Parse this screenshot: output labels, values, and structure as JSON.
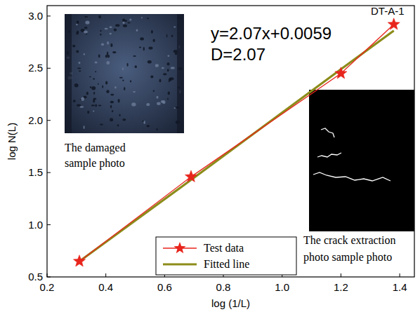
{
  "chart_data": {
    "type": "line",
    "x_label": "log (1/L)",
    "y_label": "log N(L)",
    "annotations": [
      "y=2.07x+0.0059",
      "D=2.07",
      "DT-A-1",
      "The damaged sample photo",
      "The crack extraction photo sample photo"
    ],
    "x": [
      0.31,
      0.69,
      1.2,
      1.38
    ],
    "series": [
      {
        "name": "Test data",
        "color": "#e8251c",
        "marker": "star",
        "line_style": "solid",
        "values": [
          0.65,
          1.46,
          2.45,
          2.92
        ]
      },
      {
        "name": "Fitted line",
        "color": "#8c8c1a",
        "marker": "none",
        "line_style": "solid",
        "values": [
          0.65,
          1.43,
          2.49,
          2.86
        ]
      }
    ],
    "xlim": [
      0.2,
      1.45
    ],
    "ylim": [
      0.5,
      3.1
    ],
    "xticks": [
      0.2,
      0.4,
      0.6,
      0.8,
      {
        "value": 1.0,
        "label": "1.0"
      },
      1.2,
      1.4
    ],
    "yticks": [
      0.5,
      {
        "value": 1.0,
        "label": "1.0"
      },
      1.5,
      {
        "value": 2.0,
        "label": "2.0"
      },
      2.5,
      {
        "value": 3.0,
        "label": "3.0"
      }
    ],
    "legend": "bottom",
    "grid": false
  }
}
